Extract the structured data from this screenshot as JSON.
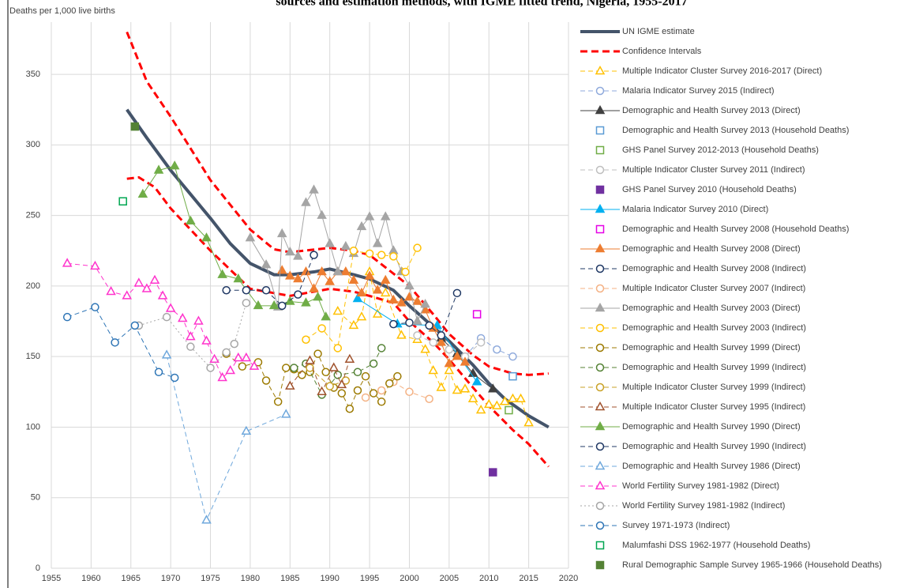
{
  "chart_data": {
    "type": "line",
    "title": "sources and estimation methods, with IGME fitted trend, Nigeria, 1955-2017",
    "y_label": "Deaths per 1,000 live births",
    "xlim": [
      1955,
      2020
    ],
    "xticks": [
      1955,
      1960,
      1965,
      1970,
      1975,
      1980,
      1985,
      1990,
      1995,
      2000,
      2005,
      2010,
      2015,
      2020
    ],
    "ylim": [
      0,
      387
    ],
    "yticks": [
      0,
      50,
      100,
      150,
      200,
      250,
      300,
      350
    ],
    "grid": true,
    "series": [
      {
        "name": "UN IGME estimate",
        "color": "#44546a",
        "line": "solid",
        "line_width": 4,
        "marker": "none",
        "fill": false,
        "x": [
          1964.5,
          1967,
          1970,
          1972.5,
          1975,
          1977.5,
          1980,
          1983,
          1985,
          1988,
          1990,
          1993,
          1995,
          1998,
          2000,
          2003,
          2005,
          2008,
          2010,
          2012,
          2015,
          2017.5
        ],
        "values": [
          325,
          305,
          282,
          265,
          248,
          230,
          216,
          208,
          208,
          210,
          212,
          208,
          205,
          197,
          186,
          171,
          161,
          144,
          131,
          120,
          108,
          100
        ]
      },
      {
        "name": "Confidence Intervals",
        "color": "#ff0000",
        "line": "dashed",
        "line_width": 3,
        "marker": "none",
        "fill": false,
        "x": [
          1964.5,
          1967,
          1970,
          1975,
          1980,
          1983,
          1985,
          1990,
          1993,
          1995,
          2000,
          2003,
          2005,
          2008,
          2010,
          2013,
          2015,
          2017.5
        ],
        "values": [
          380,
          345,
          320,
          275,
          240,
          226,
          224,
          227,
          225,
          222,
          200,
          180,
          166,
          151,
          143,
          138,
          137,
          138
        ]
      },
      {
        "name": "Confidence Intervals",
        "color": "#ff0000",
        "line": "dashed",
        "line_width": 3,
        "marker": "none",
        "fill": false,
        "legend": false,
        "x": [
          1964.5,
          1966,
          1968,
          1970,
          1975,
          1980,
          1985,
          1990,
          1993,
          1995,
          1998,
          2000,
          2003,
          2005,
          2008,
          2010,
          2013,
          2015,
          2017.5
        ],
        "values": [
          276,
          277,
          270,
          255,
          225,
          198,
          193,
          198,
          196,
          193,
          188,
          175,
          160,
          148,
          128,
          115,
          98,
          88,
          72
        ]
      },
      {
        "name": "Multiple Indicator Cluster Survey 2016-2017 (Direct)",
        "color": "#ffc000",
        "line": "dashed",
        "marker": "triangle",
        "fill": false,
        "x": [
          1991,
          1993,
          1994,
          1995,
          1996,
          1997,
          1999,
          2001,
          2002,
          2003,
          2004,
          2005,
          2006,
          2007,
          2008,
          2009,
          2010,
          2011,
          2012,
          2013,
          2014,
          2015
        ],
        "values": [
          182,
          172,
          178,
          210,
          180,
          195,
          165,
          162,
          155,
          140,
          128,
          140,
          126,
          127,
          120,
          112,
          116,
          115,
          118,
          120,
          120,
          103
        ]
      },
      {
        "name": "Malaria Indicator Survey 2015 (Indirect)",
        "color": "#8faadc",
        "line": "dashed",
        "marker": "circle",
        "fill": false,
        "x": [
          2007,
          2009,
          2011,
          2013
        ],
        "values": [
          150,
          163,
          155,
          150
        ]
      },
      {
        "name": "Demographic and Health Survey 2013 (Direct)",
        "color": "#404040",
        "line": "solid",
        "marker": "triangle",
        "fill": true,
        "x": [
          2004,
          2006,
          2008,
          2010.5
        ],
        "values": [
          163,
          152,
          138,
          127
        ]
      },
      {
        "name": "Demographic and Health Survey 2013 (Household Deaths)",
        "color": "#5b9bd5",
        "line": "none",
        "marker": "square",
        "fill": false,
        "x": [
          2013
        ],
        "values": [
          136
        ]
      },
      {
        "name": "GHS Panel Survey 2012-2013 (Household Deaths)",
        "color": "#70ad47",
        "line": "none",
        "marker": "square",
        "fill": false,
        "x": [
          2012.5
        ],
        "values": [
          112
        ]
      },
      {
        "name": "Multiple Indicator Cluster Survey 2011 (Indirect)",
        "color": "#bfbfbf",
        "line": "dashed",
        "marker": "circle",
        "fill": false,
        "x": [
          2001,
          2003,
          2005,
          2007,
          2009
        ],
        "values": [
          165,
          160,
          155,
          150,
          160
        ]
      },
      {
        "name": "GHS Panel Survey 2010 (Household Deaths)",
        "color": "#7030a0",
        "line": "none",
        "marker": "square",
        "fill": true,
        "x": [
          2010.5
        ],
        "values": [
          68
        ]
      },
      {
        "name": "Malaria Indicator Survey 2010 (Direct)",
        "color": "#00b0f0",
        "line": "solid",
        "marker": "triangle",
        "fill": true,
        "x": [
          1993.5,
          1998.5,
          2003.5,
          2008.5
        ],
        "values": [
          191,
          173,
          172,
          132
        ]
      },
      {
        "name": "Demographic and Health Survey 2008 (Household Deaths)",
        "color": "#e600e6",
        "line": "none",
        "marker": "square",
        "fill": false,
        "x": [
          2008.5
        ],
        "values": [
          180
        ]
      },
      {
        "name": "Demographic and Health Survey 2008 (Direct)",
        "color": "#ed7d31",
        "line": "solid",
        "marker": "triangle",
        "fill": true,
        "x": [
          1984,
          1985,
          1986,
          1987,
          1988,
          1989,
          1990,
          1991,
          1992,
          1993,
          1994,
          1995,
          1996,
          1997,
          1998,
          1999,
          2000,
          2001,
          2002,
          2003,
          2004,
          2005,
          2006,
          2007
        ],
        "values": [
          211,
          207,
          205,
          210,
          198,
          210,
          203,
          210,
          210,
          204,
          195,
          207,
          197,
          204,
          190,
          188,
          192,
          189,
          183,
          170,
          160,
          145,
          150,
          146
        ]
      },
      {
        "name": "Demographic and Health Survey 2008 (Indirect)",
        "color": "#1f3864",
        "line": "dashed",
        "marker": "circle",
        "fill": false,
        "x": [
          1998,
          2000,
          2002.5,
          2004,
          2006
        ],
        "values": [
          173,
          174,
          172,
          165,
          195
        ]
      },
      {
        "name": "Multiple Indicator Cluster Survey 2007 (Indirect)",
        "color": "#f4b183",
        "line": "dashed",
        "marker": "circle",
        "fill": false,
        "x": [
          1994.5,
          1996.5,
          1998,
          2000,
          2002.5
        ],
        "values": [
          121,
          126,
          132,
          125,
          120
        ]
      },
      {
        "name": "Demographic and Health Survey 2003 (Direct)",
        "color": "#a5a5a5",
        "line": "solid",
        "marker": "triangle",
        "fill": true,
        "x": [
          1980,
          1982,
          1983.5,
          1984,
          1985,
          1986,
          1987,
          1988,
          1989,
          1990,
          1991,
          1992,
          1993,
          1994,
          1995,
          1996,
          1997,
          1998,
          1999,
          2000,
          2001,
          2002
        ],
        "values": [
          234,
          215,
          185,
          237,
          224,
          221,
          259,
          268,
          250,
          230,
          210,
          228,
          223,
          242,
          249,
          230,
          249,
          225,
          210,
          200,
          175,
          187
        ]
      },
      {
        "name": "Demographic and Health Survey 2003 (Indirect)",
        "color": "#ffc000",
        "line": "dashed",
        "marker": "circle",
        "fill": false,
        "x": [
          1987,
          1989,
          1991,
          1993,
          1995,
          1996.5,
          1998,
          1999.5,
          2001
        ],
        "values": [
          162,
          170,
          156,
          225,
          223,
          222,
          221,
          210,
          227
        ]
      },
      {
        "name": "Demographic and Health Survey 1999 (Direct)",
        "color": "#9c7a00",
        "line": "dashed",
        "marker": "circle",
        "fill": false,
        "x": [
          1977,
          1979,
          1981,
          1982,
          1983.5,
          1984.5,
          1985.5,
          1986.5,
          1987.5,
          1988.5,
          1989.5,
          1990.5,
          1991.5,
          1992.5,
          1993.5,
          1994.5,
          1995.5,
          1996.5,
          1997.5,
          1998.5
        ],
        "values": [
          152,
          143,
          146,
          133,
          118,
          142,
          141,
          137,
          139,
          152,
          139,
          128,
          124,
          113,
          126,
          136,
          124,
          118,
          131,
          136
        ]
      },
      {
        "name": "Demographic and Health Survey 1999 (Indirect)",
        "color": "#548235",
        "line": "dashed",
        "marker": "circle",
        "fill": false,
        "x": [
          1985.5,
          1987,
          1989,
          1991,
          1993.5,
          1995.5,
          1996.5
        ],
        "values": [
          142,
          145,
          123,
          137,
          139,
          145,
          156
        ]
      },
      {
        "name": "Multiple Indicator Cluster Survey 1999 (Indirect)",
        "color": "#c9a227",
        "line": "dashed",
        "marker": "circle",
        "fill": false,
        "x": [
          1987.5,
          1990,
          1992
        ],
        "values": [
          142,
          129,
          133
        ]
      },
      {
        "name": "Multiple Indicator Cluster Survey 1995 (Indirect)",
        "color": "#a0522d",
        "line": "dashed",
        "marker": "triangle",
        "fill": false,
        "x": [
          1985,
          1987.5,
          1989,
          1990.5,
          1991.5,
          1992.5
        ],
        "values": [
          129,
          147,
          125,
          142,
          130,
          148
        ]
      },
      {
        "name": "Demographic and Health Survey 1990 (Direct)",
        "color": "#70ad47",
        "line": "solid",
        "marker": "triangle",
        "fill": true,
        "x": [
          1966.5,
          1968.5,
          1970.5,
          1972.5,
          1974.5,
          1976.5,
          1978.5,
          1981,
          1983,
          1985,
          1987,
          1988.5,
          1989.5
        ],
        "values": [
          265,
          282,
          285,
          246,
          234,
          208,
          205,
          186,
          186,
          189,
          188,
          192,
          178
        ]
      },
      {
        "name": "Demographic and Health Survey 1990 (Indirect)",
        "color": "#203864",
        "line": "dashed",
        "marker": "circle",
        "fill": false,
        "x": [
          1977,
          1979.5,
          1982,
          1984,
          1986,
          1988
        ],
        "values": [
          197,
          197,
          197,
          186,
          194,
          222
        ]
      },
      {
        "name": "Demographic and Health Survey 1986 (Direct)",
        "color": "#6fa8dc",
        "line": "dashed",
        "marker": "triangle",
        "fill": false,
        "x": [
          1969.5,
          1974.5,
          1979.5,
          1984.5
        ],
        "values": [
          151,
          34,
          97,
          109
        ]
      },
      {
        "name": "World Fertility Survey 1981-1982 (Direct)",
        "color": "#ff33cc",
        "line": "dashed",
        "marker": "triangle",
        "fill": false,
        "x": [
          1957,
          1960.5,
          1962.5,
          1964.5,
          1966,
          1967,
          1968,
          1969,
          1970,
          1971.5,
          1972.5,
          1973.5,
          1974.5,
          1975.5,
          1976.5,
          1977.5,
          1978.5,
          1979.5,
          1980.5
        ],
        "values": [
          216,
          214,
          196,
          193,
          202,
          198,
          204,
          193,
          184,
          177,
          164,
          175,
          161,
          148,
          135,
          140,
          149,
          149,
          143
        ]
      },
      {
        "name": "World Fertility Survey 1981-1982 (Indirect)",
        "color": "#a6a6a6",
        "line": "dotted",
        "marker": "circle",
        "fill": false,
        "x": [
          1966,
          1969.5,
          1972.5,
          1975,
          1977,
          1978,
          1979.5
        ],
        "values": [
          172,
          178,
          157,
          142,
          153,
          159,
          188
        ]
      },
      {
        "name": "Survey 1971-1973 (Indirect)",
        "color": "#2e75b6",
        "line": "dashed",
        "marker": "circle",
        "fill": false,
        "x": [
          1957,
          1960.5,
          1963,
          1965.5,
          1968.5,
          1970.5
        ],
        "values": [
          178,
          185,
          160,
          172,
          139,
          135
        ]
      },
      {
        "name": "Malumfashi DSS 1962-1977 (Household Deaths)",
        "color": "#00a651",
        "line": "none",
        "marker": "square",
        "fill": false,
        "x": [
          1964
        ],
        "values": [
          260
        ]
      },
      {
        "name": "Rural Demographic Sample Survey 1965-1966 (Household Deaths)",
        "color": "#548235",
        "line": "none",
        "marker": "square",
        "fill": true,
        "x": [
          1965.5
        ],
        "values": [
          313
        ]
      }
    ]
  }
}
